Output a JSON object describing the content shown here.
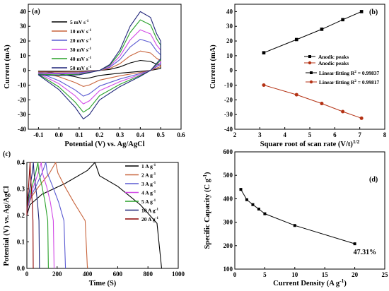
{
  "chart_data": [
    {
      "panel": "(a)",
      "type": "line",
      "xlabel": "Potential (V) vs. Ag/AgCl",
      "ylabel": "Current (mA)",
      "xlim": [
        -0.15,
        0.6
      ],
      "ylim": [
        -40,
        45
      ],
      "xticks": [
        -0.1,
        0.0,
        0.1,
        0.2,
        0.3,
        0.4,
        0.5,
        0.6
      ],
      "xtick_labels": [
        "-0.1",
        "0.0",
        "0.1",
        "0.2",
        "0.3",
        "0.4",
        "0.5",
        "0.6"
      ],
      "yticks": [
        -40,
        -30,
        -20,
        -10,
        0,
        10,
        20,
        30,
        40
      ],
      "legend_position": "top-left",
      "series": [
        {
          "name": "5 mV s",
          "sup": "-1",
          "color": "#000000",
          "amp": 0.17
        },
        {
          "name": "10 mV s",
          "sup": "-1",
          "color": "#c8643c",
          "amp": 0.33
        },
        {
          "name": "20 mV s",
          "sup": "-1",
          "color": "#5a5ad2",
          "amp": 0.53
        },
        {
          "name": "30 mV s",
          "sup": "-1",
          "color": "#d24be6",
          "amp": 0.69
        },
        {
          "name": "40 mV s",
          "sup": "-1",
          "color": "#28a028",
          "amp": 0.86
        },
        {
          "name": "50 mV s",
          "sup": "-1",
          "color": "#1e2378",
          "amp": 1.0
        }
      ]
    },
    {
      "panel": "(b)",
      "type": "scatter",
      "xlabel": "Square root of scan rate (V/t)",
      "xlabel_sup": "1/2",
      "ylabel": "Current (mA)",
      "xlim": [
        2,
        8
      ],
      "ylim": [
        -40,
        45
      ],
      "xticks": [
        2,
        3,
        4,
        5,
        6,
        7,
        8
      ],
      "yticks": [
        -40,
        -30,
        -20,
        -10,
        0,
        10,
        20,
        30,
        40
      ],
      "legend_position": "center-right",
      "series": [
        {
          "name": "Anodic peaks",
          "color": "#000000",
          "marker": "square",
          "x": [
            3.16,
            4.47,
            5.48,
            6.32,
            7.07
          ],
          "y": [
            12.0,
            21.0,
            28.0,
            34.5,
            40.0
          ]
        },
        {
          "name": "Anodic peaks",
          "color": "#b43214",
          "marker": "circle",
          "x": [
            3.16,
            4.47,
            5.48,
            6.32,
            7.07
          ],
          "y": [
            -10.0,
            -16.5,
            -22.5,
            -28.0,
            -32.5
          ]
        }
      ],
      "fits": [
        {
          "name": "Linear fitting R",
          "r2": "2",
          "value": " = 0.99837",
          "color": "#000000"
        },
        {
          "name": "Linear fitting R",
          "r2": "2",
          "value": " = 0.99817",
          "color": "#b43214"
        }
      ]
    },
    {
      "panel": "(c)",
      "type": "line",
      "xlabel": "Time (S)",
      "ylabel": "Potential (V) vs. Ag/AgCl",
      "xlim": [
        0,
        1000
      ],
      "ylim": [
        0,
        0.4
      ],
      "xticks": [
        0,
        200,
        400,
        600,
        800,
        1000
      ],
      "yticks": [
        0.0,
        0.1,
        0.2,
        0.3,
        0.4
      ],
      "ytick_labels": [
        "0.0",
        "0.1",
        "0.2",
        "0.3",
        "0.4"
      ],
      "legend_position": "top-right",
      "series": [
        {
          "name": "1 A g",
          "sup": "-1",
          "color": "#000000",
          "x": [
            0,
            20,
            100,
            250,
            400,
            450,
            480,
            600,
            750,
            860,
            890
          ],
          "y": [
            0.2,
            0.24,
            0.28,
            0.32,
            0.37,
            0.4,
            0.35,
            0.31,
            0.24,
            0.17,
            0.0
          ]
        },
        {
          "name": "2 A g",
          "sup": "-1",
          "color": "#c8643c",
          "x": [
            0,
            5,
            30,
            80,
            150,
            190,
            205,
            250,
            310,
            385,
            400
          ],
          "y": [
            0.2,
            0.23,
            0.27,
            0.31,
            0.36,
            0.4,
            0.36,
            0.31,
            0.25,
            0.18,
            0.0
          ]
        },
        {
          "name": "3 A g",
          "sup": "-1",
          "color": "#5a5ad2",
          "x": [
            0,
            5,
            25,
            60,
            100,
            125,
            135,
            170,
            210,
            245,
            255
          ],
          "y": [
            0.2,
            0.23,
            0.27,
            0.31,
            0.36,
            0.4,
            0.36,
            0.31,
            0.25,
            0.18,
            0.0
          ]
        },
        {
          "name": "4 A g",
          "sup": "-1",
          "color": "#d24be6",
          "x": [
            0,
            4,
            20,
            45,
            75,
            95,
            103,
            130,
            155,
            175,
            180
          ],
          "y": [
            0.2,
            0.23,
            0.27,
            0.31,
            0.36,
            0.4,
            0.36,
            0.31,
            0.25,
            0.18,
            0.0
          ]
        },
        {
          "name": "5 A g",
          "sup": "-1",
          "color": "#28a028",
          "x": [
            0,
            3,
            15,
            35,
            58,
            73,
            80,
            100,
            120,
            138,
            142
          ],
          "y": [
            0.2,
            0.23,
            0.27,
            0.31,
            0.36,
            0.4,
            0.36,
            0.31,
            0.25,
            0.18,
            0.0
          ]
        },
        {
          "name": "10 A g",
          "sup": "-1",
          "color": "#1e2378",
          "x": [
            0,
            2,
            10,
            22,
            35,
            43,
            47,
            58,
            70,
            80,
            83
          ],
          "y": [
            0.2,
            0.23,
            0.27,
            0.31,
            0.36,
            0.4,
            0.36,
            0.31,
            0.25,
            0.18,
            0.0
          ]
        },
        {
          "name": "20 A g",
          "sup": "-1",
          "color": "#8c0000",
          "x": [
            0,
            1,
            5,
            11,
            17,
            21,
            23,
            29,
            35,
            40,
            42
          ],
          "y": [
            0.2,
            0.23,
            0.27,
            0.31,
            0.36,
            0.4,
            0.36,
            0.31,
            0.25,
            0.18,
            0.0
          ]
        }
      ]
    },
    {
      "panel": "(d)",
      "type": "line",
      "xlabel": "Current Density (A g",
      "xlabel_sup": "-1",
      "xlabel_end": ")",
      "ylabel": "Specific Capacity (C g",
      "ylabel_sup": "-1",
      "ylabel_end": ")",
      "xlim": [
        0,
        25
      ],
      "ylim": [
        100,
        600
      ],
      "xticks": [
        0,
        5,
        10,
        15,
        20,
        25
      ],
      "yticks": [
        100,
        200,
        300,
        400,
        500,
        600
      ],
      "annotation": "47.31%",
      "series": [
        {
          "name": "",
          "color": "#000000",
          "marker": "square",
          "x": [
            1,
            2,
            3,
            4,
            5,
            10,
            20
          ],
          "y": [
            440,
            396,
            375,
            356,
            336,
            286,
            208
          ]
        }
      ]
    }
  ]
}
